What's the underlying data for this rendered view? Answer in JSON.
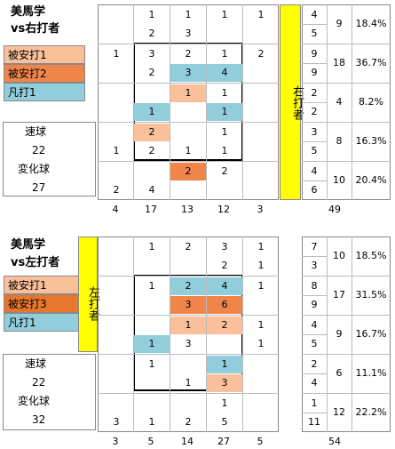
{
  "top": {
    "title_line1": "美馬学",
    "title_line2": "vs右打者",
    "legend": [
      {
        "label": "被安打1",
        "color": "#f9c09a"
      },
      {
        "label": "被安打2",
        "color": "#f0854a"
      },
      {
        "label": "凡打1",
        "color": "#92cddc"
      }
    ],
    "pitch_types": [
      {
        "name": "速球",
        "count": "22"
      },
      {
        "name": "変化球",
        "count": "27"
      }
    ],
    "batter_side": "右打者",
    "rows": [
      {
        "cells": [
          "",
          "1",
          "1",
          "1",
          "1"
        ],
        "sub": [
          "",
          "2",
          "3",
          "",
          ""
        ]
      },
      {
        "cells": [
          "1",
          "3",
          "2",
          "1",
          "2"
        ],
        "sub": [
          "",
          "2",
          "3",
          "4",
          ""
        ]
      },
      {
        "cells": [
          "",
          "",
          "1",
          "1",
          ""
        ],
        "sub": [
          "",
          "1",
          "",
          "1",
          ""
        ]
      },
      {
        "cells": [
          "",
          "2",
          "",
          "1",
          ""
        ],
        "sub": [
          "1",
          "2",
          "1",
          "1",
          ""
        ]
      },
      {
        "cells": [
          "",
          "",
          "2",
          "2",
          ""
        ],
        "sub": [
          "2",
          "4",
          "",
          "",
          ""
        ]
      }
    ],
    "col_totals": [
      "4",
      "17",
      "13",
      "12",
      "3"
    ],
    "grand_total": "49",
    "right": [
      {
        "a": "4",
        "b": "5",
        "total": "9",
        "pct": "18.4%"
      },
      {
        "a": "9",
        "b": "9",
        "total": "18",
        "pct": "36.7%"
      },
      {
        "a": "2",
        "b": "2",
        "total": "4",
        "pct": "8.2%"
      },
      {
        "a": "3",
        "b": "5",
        "total": "8",
        "pct": "16.3%"
      },
      {
        "a": "4",
        "b": "6",
        "total": "10",
        "pct": "20.4%"
      }
    ]
  },
  "bottom": {
    "title_line1": "美馬学",
    "title_line2": "vs左打者",
    "legend": [
      {
        "label": "被安打1",
        "color": "#f9c09a"
      },
      {
        "label": "被安打3",
        "color": "#e8772e"
      },
      {
        "label": "凡打1",
        "color": "#92cddc"
      }
    ],
    "pitch_types": [
      {
        "name": "速球",
        "count": "22"
      },
      {
        "name": "変化球",
        "count": "32"
      }
    ],
    "batter_side": "左打者",
    "rows": [
      {
        "cells": [
          "",
          "1",
          "2",
          "3",
          "1"
        ],
        "sub": [
          "",
          "",
          "",
          "2",
          "1"
        ]
      },
      {
        "cells": [
          "",
          "1",
          "2",
          "4",
          "1"
        ],
        "sub": [
          "",
          "",
          "3",
          "6",
          ""
        ]
      },
      {
        "cells": [
          "",
          "",
          "1",
          "2",
          "1"
        ],
        "sub": [
          "",
          "1",
          "3",
          "",
          "1"
        ]
      },
      {
        "cells": [
          "",
          "1",
          "",
          "1",
          ""
        ],
        "sub": [
          "",
          "",
          "1",
          "3",
          ""
        ]
      },
      {
        "cells": [
          "",
          "",
          "",
          "1",
          ""
        ],
        "sub": [
          "3",
          "1",
          "2",
          "5",
          ""
        ]
      }
    ],
    "col_totals": [
      "3",
      "5",
      "14",
      "27",
      "5"
    ],
    "grand_total": "54",
    "right": [
      {
        "a": "7",
        "b": "3",
        "total": "10",
        "pct": "18.5%"
      },
      {
        "a": "8",
        "b": "9",
        "total": "17",
        "pct": "31.5%"
      },
      {
        "a": "4",
        "b": "5",
        "total": "9",
        "pct": "16.7%"
      },
      {
        "a": "2",
        "b": "4",
        "total": "6",
        "pct": "11.1%"
      },
      {
        "a": "1",
        "b": "11",
        "total": "12",
        "pct": "22.2%"
      }
    ]
  }
}
